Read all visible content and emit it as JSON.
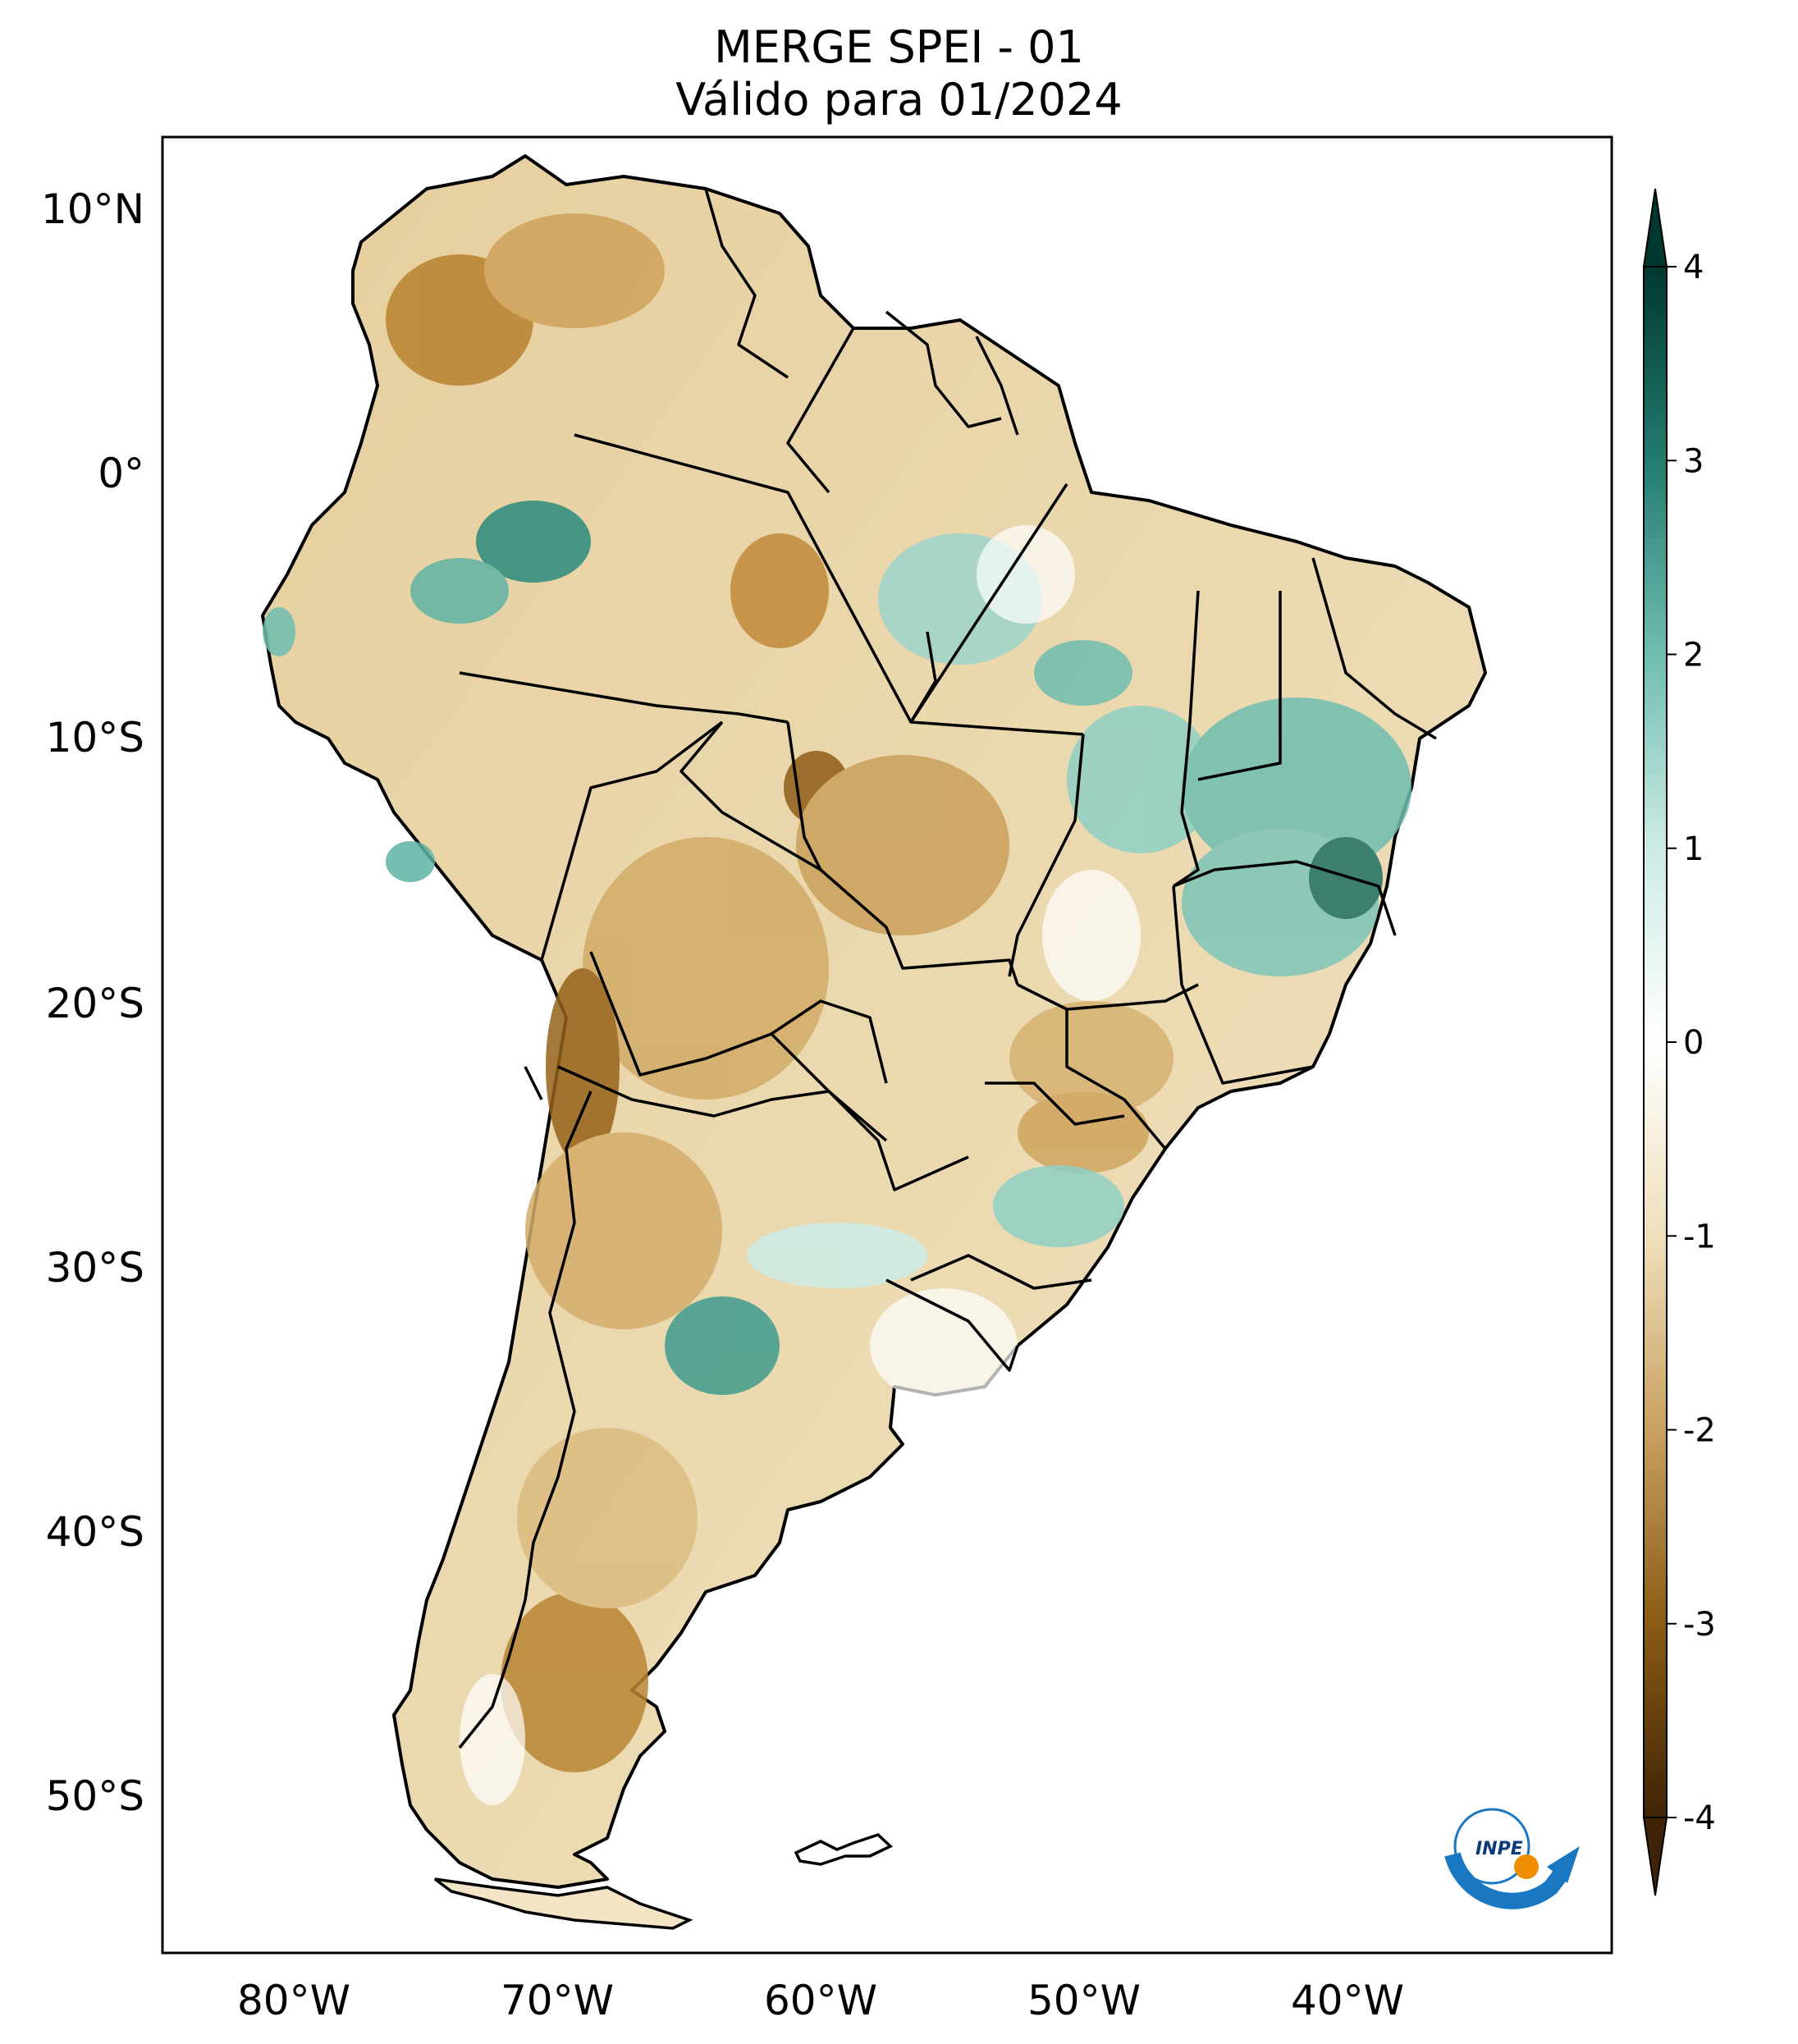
{
  "title": {
    "line1": "MERGE   SPEI - 01",
    "line2": "Válido para 01/2024"
  },
  "map": {
    "region": "South America",
    "lon_range": [
      -85,
      -30
    ],
    "lat_range": [
      -56,
      13
    ],
    "lon_ticks": [
      "80°W",
      "70°W",
      "60°W",
      "50°W",
      "40°W"
    ],
    "lat_ticks": [
      "10°N",
      "0°",
      "10°S",
      "20°S",
      "30°S",
      "40°S",
      "50°S"
    ]
  },
  "colorbar": {
    "min": -4,
    "max": 4,
    "extend": "both",
    "tick_labels": [
      "4",
      "3",
      "2",
      "1",
      "0",
      "-1",
      "-2",
      "-3",
      "-4"
    ],
    "colors": [
      "#3f2306",
      "#8b5b14",
      "#c9a060",
      "#efe0bc",
      "#ffffff",
      "#cdebe6",
      "#6fbdb0",
      "#237c70",
      "#00382f"
    ]
  },
  "logo": {
    "text": "INPE"
  }
}
